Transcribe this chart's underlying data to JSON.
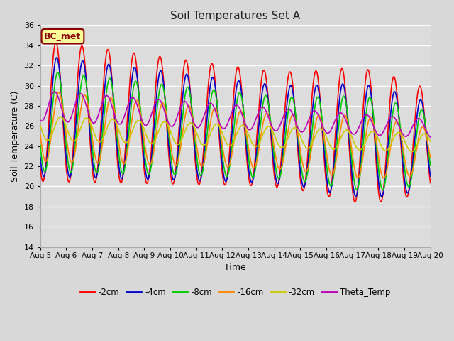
{
  "title": "Soil Temperatures Set A",
  "xlabel": "Time",
  "ylabel": "Soil Temperature (C)",
  "ylim": [
    14,
    36
  ],
  "date_labels": [
    "Aug 5",
    "Aug 6",
    "Aug 7",
    "Aug 8",
    "Aug 9",
    "Aug 10",
    "Aug 11",
    "Aug 12",
    "Aug 13",
    "Aug 14",
    "Aug 15",
    "Aug 16",
    "Aug 17",
    "Aug 18",
    "Aug 19",
    "Aug 20"
  ],
  "series": {
    "-2cm": {
      "color": "#FF0000",
      "lw": 1.2
    },
    "-4cm": {
      "color": "#0000CC",
      "lw": 1.2
    },
    "-8cm": {
      "color": "#00CC00",
      "lw": 1.2
    },
    "-16cm": {
      "color": "#FF8800",
      "lw": 1.2
    },
    "-32cm": {
      "color": "#CCCC00",
      "lw": 1.2
    },
    "Theta_Temp": {
      "color": "#BB00BB",
      "lw": 1.2
    }
  },
  "annotation_text": "BC_met",
  "annotation_color": "#8B0000",
  "annotation_bg": "#FFFF99",
  "bg_color": "#D8D8D8",
  "plot_bg": "#DCDCDC",
  "grid_color": "#FFFFFF",
  "yticks": [
    14,
    16,
    18,
    20,
    22,
    24,
    26,
    28,
    30,
    32,
    34,
    36
  ]
}
